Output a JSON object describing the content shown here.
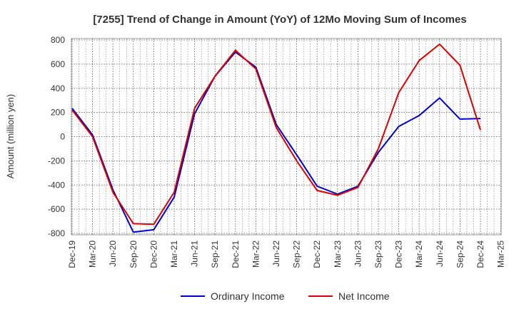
{
  "chart_data": {
    "type": "line",
    "title": "[7255]  Trend of Change in Amount (YoY) of 12Mo Moving Sum of Incomes",
    "ylabel": "Amount (million yen)",
    "xlabel": "",
    "ylim": [
      -800,
      800
    ],
    "yticks": [
      800,
      600,
      400,
      200,
      0,
      -200,
      -400,
      -600,
      -800
    ],
    "categories": [
      "Dec-19",
      "Mar-20",
      "Jun-20",
      "Sep-20",
      "Dec-20",
      "Mar-21",
      "Jun-21",
      "Sep-21",
      "Dec-21",
      "Mar-22",
      "Jun-22",
      "Sep-22",
      "Dec-22",
      "Mar-23",
      "Jun-23",
      "Sep-23",
      "Dec-23",
      "Mar-24",
      "Jun-24",
      "Sep-24",
      "Dec-24",
      "Mar-25"
    ],
    "grid": true,
    "legend_position": "bottom",
    "series": [
      {
        "name": "Ordinary Income",
        "color": "#0000cc",
        "values": [
          235,
          15,
          -440,
          -790,
          -770,
          -500,
          190,
          500,
          700,
          575,
          100,
          -150,
          -410,
          -475,
          -410,
          -130,
          85,
          175,
          320,
          145,
          150,
          null
        ]
      },
      {
        "name": "Net Income",
        "color": "#dd0000",
        "values": [
          220,
          0,
          -460,
          -720,
          -725,
          -460,
          235,
          500,
          715,
          560,
          75,
          -200,
          -445,
          -485,
          -420,
          -100,
          365,
          630,
          765,
          590,
          55,
          null
        ]
      }
    ]
  }
}
